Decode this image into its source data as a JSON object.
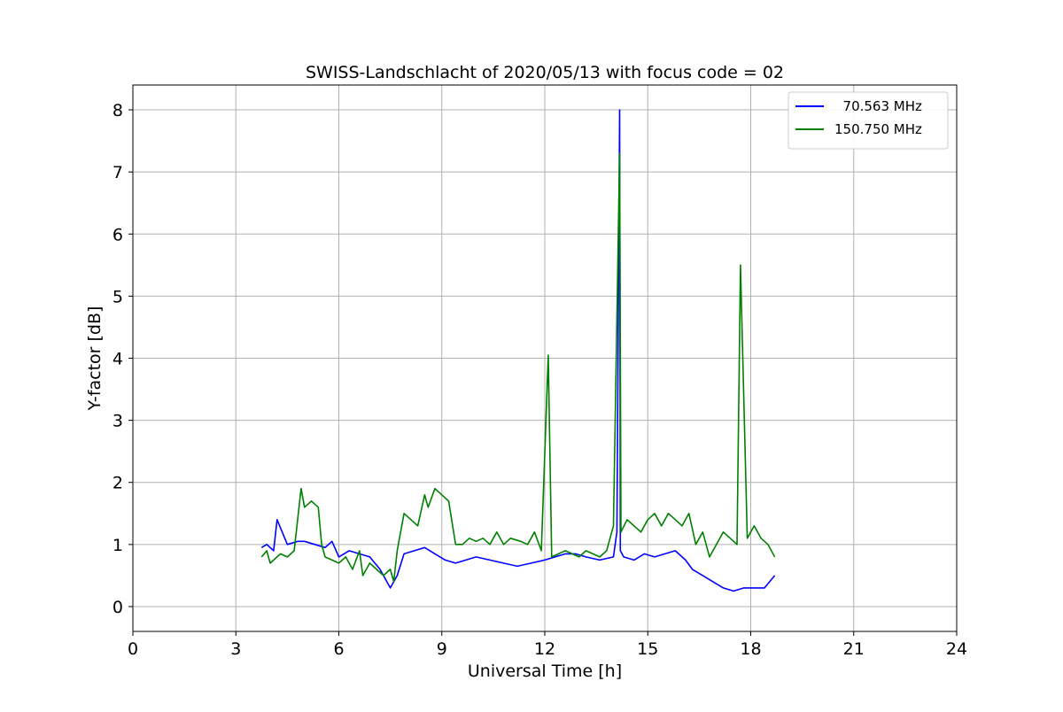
{
  "chart_data": {
    "type": "line",
    "title": "SWISS-Landschlacht of 2020/05/13 with focus code = 02",
    "xlabel": "Universal Time [h]",
    "ylabel": "Y-factor [dB]",
    "xlim": [
      0,
      24
    ],
    "ylim": [
      -0.4,
      8.4
    ],
    "xticks": [
      0,
      3,
      6,
      9,
      12,
      15,
      18,
      21,
      24
    ],
    "yticks": [
      0,
      1,
      2,
      3,
      4,
      5,
      6,
      7,
      8
    ],
    "grid": true,
    "legend": "top-right",
    "series": [
      {
        "name": "  70.563 MHz",
        "color": "#0000ff",
        "x": [
          3.75,
          3.9,
          4.1,
          4.2,
          4.5,
          4.8,
          5.0,
          5.3,
          5.6,
          5.8,
          6.0,
          6.3,
          6.6,
          6.9,
          7.2,
          7.5,
          7.7,
          7.9,
          8.2,
          8.5,
          8.8,
          9.1,
          9.4,
          9.7,
          10.0,
          10.4,
          10.8,
          11.2,
          11.6,
          12.0,
          12.3,
          12.6,
          12.9,
          13.2,
          13.6,
          14.0,
          14.1,
          14.18,
          14.2,
          14.3,
          14.6,
          14.9,
          15.2,
          15.5,
          15.8,
          16.1,
          16.3,
          16.6,
          16.9,
          17.2,
          17.5,
          17.8,
          18.1,
          18.4,
          18.7
        ],
        "y": [
          0.95,
          1.0,
          0.9,
          1.4,
          1.0,
          1.05,
          1.05,
          1.0,
          0.95,
          1.05,
          0.8,
          0.9,
          0.85,
          0.8,
          0.6,
          0.3,
          0.5,
          0.85,
          0.9,
          0.95,
          0.85,
          0.75,
          0.7,
          0.75,
          0.8,
          0.75,
          0.7,
          0.65,
          0.7,
          0.75,
          0.8,
          0.85,
          0.85,
          0.8,
          0.75,
          0.8,
          1.2,
          8.0,
          0.9,
          0.8,
          0.75,
          0.85,
          0.8,
          0.85,
          0.9,
          0.75,
          0.6,
          0.5,
          0.4,
          0.3,
          0.25,
          0.3,
          0.3,
          0.3,
          0.5
        ]
      },
      {
        "name": "150.750 MHz",
        "color": "#008000",
        "x": [
          3.75,
          3.9,
          4.0,
          4.1,
          4.3,
          4.5,
          4.7,
          4.9,
          5.0,
          5.2,
          5.4,
          5.5,
          5.6,
          5.8,
          6.0,
          6.2,
          6.4,
          6.6,
          6.7,
          6.9,
          7.1,
          7.3,
          7.5,
          7.6,
          7.7,
          7.9,
          8.1,
          8.3,
          8.5,
          8.6,
          8.8,
          9.0,
          9.2,
          9.4,
          9.6,
          9.8,
          10.0,
          10.2,
          10.4,
          10.6,
          10.8,
          11.0,
          11.3,
          11.5,
          11.7,
          11.9,
          12.1,
          12.2,
          12.4,
          12.6,
          12.8,
          13.0,
          13.2,
          13.4,
          13.6,
          13.8,
          14.0,
          14.18,
          14.22,
          14.4,
          14.6,
          14.8,
          15.0,
          15.2,
          15.4,
          15.6,
          15.8,
          16.0,
          16.2,
          16.4,
          16.6,
          16.8,
          17.0,
          17.2,
          17.4,
          17.6,
          17.7,
          17.9,
          18.1,
          18.3,
          18.5,
          18.7
        ],
        "y": [
          0.8,
          0.9,
          0.7,
          0.75,
          0.85,
          0.8,
          0.9,
          1.9,
          1.6,
          1.7,
          1.6,
          1.0,
          0.8,
          0.75,
          0.7,
          0.8,
          0.6,
          0.9,
          0.5,
          0.7,
          0.6,
          0.5,
          0.6,
          0.4,
          0.9,
          1.5,
          1.4,
          1.3,
          1.8,
          1.6,
          1.9,
          1.8,
          1.7,
          1.0,
          1.0,
          1.1,
          1.05,
          1.1,
          1.0,
          1.2,
          1.0,
          1.1,
          1.05,
          1.0,
          1.2,
          0.9,
          4.05,
          0.8,
          0.85,
          0.9,
          0.85,
          0.8,
          0.9,
          0.85,
          0.8,
          0.9,
          1.3,
          7.3,
          1.2,
          1.4,
          1.3,
          1.2,
          1.4,
          1.5,
          1.3,
          1.5,
          1.4,
          1.3,
          1.5,
          1.0,
          1.2,
          0.8,
          1.0,
          1.2,
          1.1,
          1.0,
          5.5,
          1.1,
          1.3,
          1.1,
          1.0,
          0.8
        ]
      }
    ]
  }
}
